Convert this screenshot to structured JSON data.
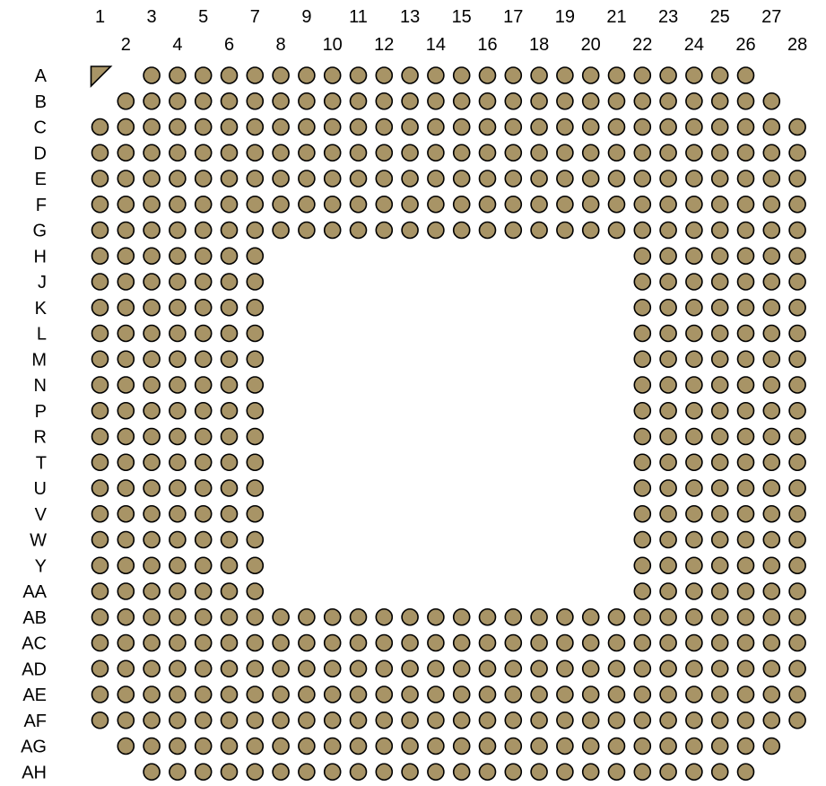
{
  "diagram": {
    "columns": [
      "1",
      "2",
      "3",
      "4",
      "5",
      "6",
      "7",
      "8",
      "9",
      "10",
      "11",
      "12",
      "13",
      "14",
      "15",
      "16",
      "17",
      "18",
      "19",
      "20",
      "21",
      "22",
      "23",
      "24",
      "25",
      "26",
      "27",
      "28"
    ],
    "rows": [
      "A",
      "B",
      "C",
      "D",
      "E",
      "F",
      "G",
      "H",
      "J",
      "K",
      "L",
      "M",
      "N",
      "P",
      "R",
      "T",
      "U",
      "V",
      "W",
      "Y",
      "AA",
      "AB",
      "AC",
      "AD",
      "AE",
      "AF",
      "AG",
      "AH"
    ],
    "row_pin_ranges": {
      "A": [
        [
          3,
          26
        ]
      ],
      "B": [
        [
          2,
          27
        ]
      ],
      "C": [
        [
          1,
          28
        ]
      ],
      "D": [
        [
          1,
          28
        ]
      ],
      "E": [
        [
          1,
          28
        ]
      ],
      "F": [
        [
          1,
          28
        ]
      ],
      "G": [
        [
          1,
          28
        ]
      ],
      "H": [
        [
          1,
          7
        ],
        [
          22,
          28
        ]
      ],
      "J": [
        [
          1,
          7
        ],
        [
          22,
          28
        ]
      ],
      "K": [
        [
          1,
          7
        ],
        [
          22,
          28
        ]
      ],
      "L": [
        [
          1,
          7
        ],
        [
          22,
          28
        ]
      ],
      "M": [
        [
          1,
          7
        ],
        [
          22,
          28
        ]
      ],
      "N": [
        [
          1,
          7
        ],
        [
          22,
          28
        ]
      ],
      "P": [
        [
          1,
          7
        ],
        [
          22,
          28
        ]
      ],
      "R": [
        [
          1,
          7
        ],
        [
          22,
          28
        ]
      ],
      "T": [
        [
          1,
          7
        ],
        [
          22,
          28
        ]
      ],
      "U": [
        [
          1,
          7
        ],
        [
          22,
          28
        ]
      ],
      "V": [
        [
          1,
          7
        ],
        [
          22,
          28
        ]
      ],
      "W": [
        [
          1,
          7
        ],
        [
          22,
          28
        ]
      ],
      "Y": [
        [
          1,
          7
        ],
        [
          22,
          28
        ]
      ],
      "AA": [
        [
          1,
          7
        ],
        [
          22,
          28
        ]
      ],
      "AB": [
        [
          1,
          28
        ]
      ],
      "AC": [
        [
          1,
          28
        ]
      ],
      "AD": [
        [
          1,
          28
        ]
      ],
      "AE": [
        [
          1,
          28
        ]
      ],
      "AF": [
        [
          1,
          28
        ]
      ],
      "AG": [
        [
          2,
          27
        ]
      ],
      "AH": [
        [
          3,
          26
        ]
      ]
    },
    "pin1_marker": {
      "row": "A",
      "col": 1,
      "shape": "triangle"
    },
    "colors": {
      "pin_fill": "#a89466",
      "pin_stroke": "#000000",
      "label": "#000000",
      "background": "#ffffff"
    }
  }
}
